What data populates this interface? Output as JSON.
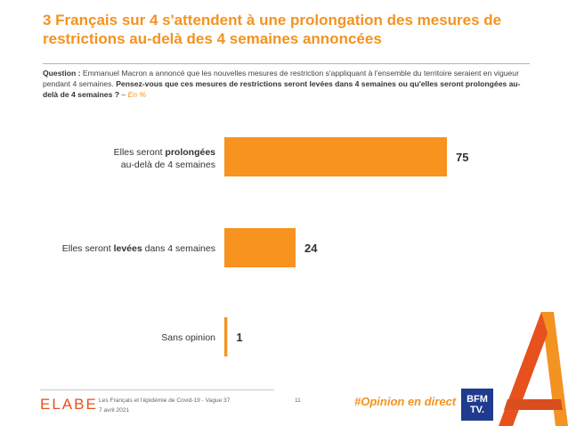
{
  "title": "3 Français sur 4 s'attendent à une prolongation des mesures de restrictions au-delà des 4 semaines annoncées",
  "question": {
    "label": "Question :",
    "intro": " Emmanuel Macron a annoncé que les nouvelles mesures de restriction s'appliquant à l'ensemble du territoire seraient en vigueur pendant 4 semaines. ",
    "bold": "Pensez-vous que ces mesures de restrictions seront levées dans 4 semaines ou qu'elles seront prolongées au-delà de 4 semaines ?",
    "dash": " – ",
    "unit": "En %"
  },
  "chart_data": {
    "type": "bar",
    "orientation": "horizontal",
    "categories": [
      {
        "pre": "Elles seront ",
        "bold": "prolongées",
        "post": "",
        "line2": "au-delà de 4 semaines"
      },
      {
        "pre": "Elles seront ",
        "bold": "levées",
        "post": " dans 4 semaines",
        "line2": ""
      },
      {
        "pre": "Sans opinion",
        "bold": "",
        "post": "",
        "line2": ""
      }
    ],
    "values": [
      75,
      24,
      1
    ],
    "unit": "%",
    "xlim": [
      0,
      75
    ],
    "bar_color": "#f7931e",
    "grid": false,
    "legend": "none"
  },
  "footer": {
    "logo": "ELABE",
    "source": "Les Français et l'épidémie de Covid-19 - Vague 37",
    "date": "7 avril 2021",
    "page": "11",
    "hashtag": "#Opinion en direct",
    "broadcaster_line1": "BFM",
    "broadcaster_line2": "TV."
  },
  "colors": {
    "accent": "#f39321",
    "logo": "#e7511d",
    "broadcaster": "#1f3a8f"
  }
}
